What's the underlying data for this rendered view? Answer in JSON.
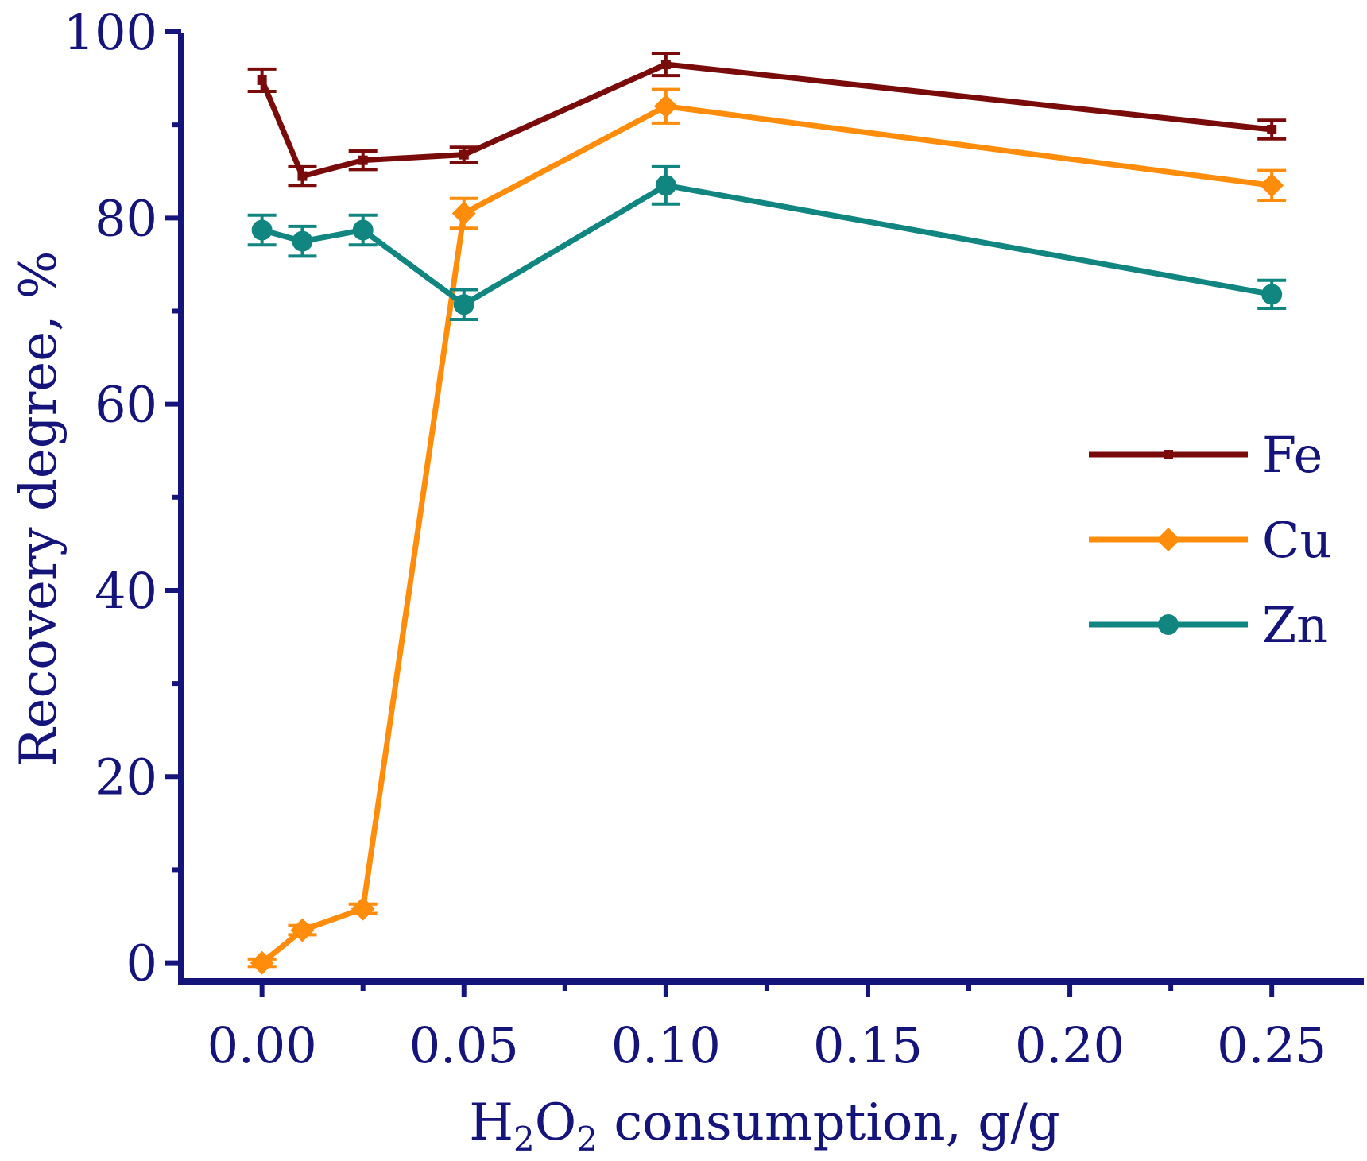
{
  "chart_data": {
    "type": "line",
    "title": "",
    "xlabel": "H2O2 consumption, g/g",
    "xlabel_parts": {
      "h": "H",
      "sub1": "2",
      "o": "O",
      "sub2": "2",
      "rest": " consumption, g/g"
    },
    "ylabel": "Recovery degree, %",
    "xlim": [
      -0.02,
      0.272
    ],
    "ylim": [
      -2,
      100
    ],
    "x_ticks": [
      0.0,
      0.05,
      0.1,
      0.15,
      0.2,
      0.25
    ],
    "x_tick_labels": [
      "0.00",
      "0.05",
      "0.10",
      "0.15",
      "0.20",
      "0.25"
    ],
    "x_minor_ticks": [
      0.025,
      0.075,
      0.125,
      0.175,
      0.225
    ],
    "y_ticks": [
      0,
      20,
      40,
      60,
      80,
      100
    ],
    "y_tick_labels": [
      "0",
      "20",
      "40",
      "60",
      "80",
      "100"
    ],
    "y_minor_ticks": [
      10,
      30,
      50,
      70,
      90
    ],
    "x": [
      0.0,
      0.01,
      0.025,
      0.05,
      0.1,
      0.25
    ],
    "legend_position": "right",
    "axis_color": "#14147a",
    "series": [
      {
        "name": "Fe",
        "marker": "square",
        "color": "#7a0b0b",
        "values": [
          94.8,
          84.5,
          86.2,
          86.8,
          96.5,
          89.5
        ],
        "errors": [
          1.2,
          1.0,
          1.0,
          0.8,
          1.2,
          1.0
        ]
      },
      {
        "name": "Cu",
        "marker": "diamond",
        "color": "#ff8c0a",
        "values": [
          0.0,
          3.5,
          5.8,
          80.5,
          92.0,
          83.5
        ],
        "errors": [
          0.4,
          0.5,
          0.5,
          1.6,
          1.8,
          1.6
        ]
      },
      {
        "name": "Zn",
        "marker": "circle",
        "color": "#118580",
        "values": [
          78.7,
          77.5,
          78.7,
          70.7,
          83.5,
          71.8
        ],
        "errors": [
          1.6,
          1.6,
          1.6,
          1.6,
          2.0,
          1.5
        ]
      }
    ]
  }
}
